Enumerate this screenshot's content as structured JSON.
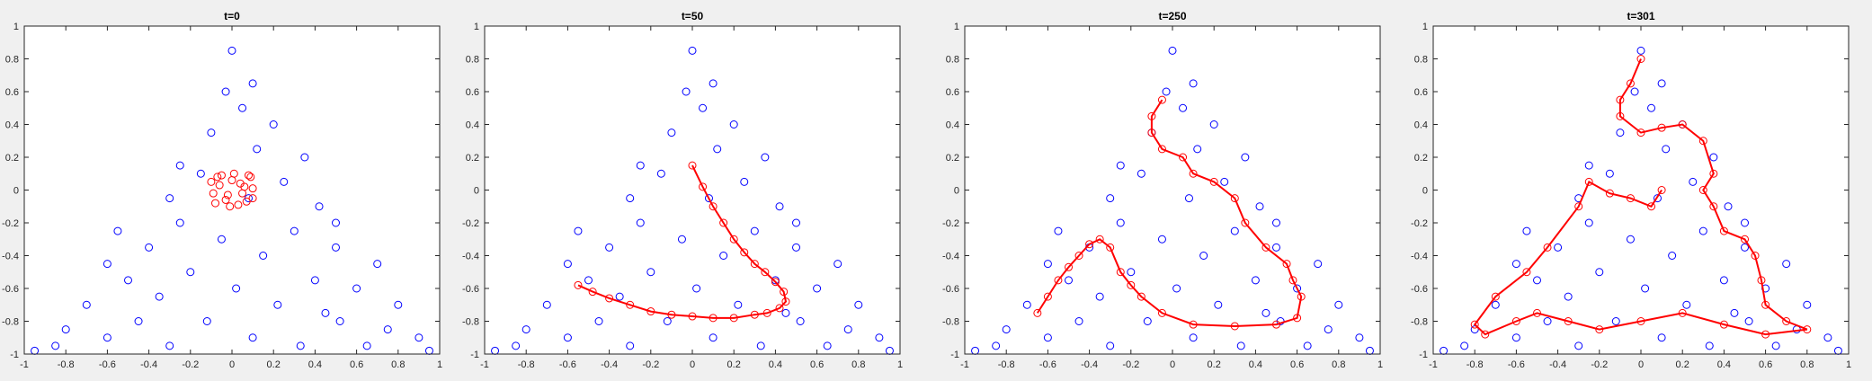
{
  "chart_data": [
    {
      "type": "scatter",
      "title": "t=0",
      "xlim": [
        -1,
        1
      ],
      "ylim": [
        -1,
        1
      ],
      "xticks": [
        -1,
        -0.8,
        -0.6,
        -0.4,
        -0.2,
        0,
        0.2,
        0.4,
        0.6,
        0.8,
        1
      ],
      "yticks": [
        -1,
        -0.8,
        -0.6,
        -0.4,
        -0.2,
        0,
        0.2,
        0.4,
        0.6,
        0.8,
        1
      ],
      "series": [
        {
          "color": "#0000ff",
          "connected": false,
          "x": [
            -0.95,
            -0.8,
            -0.7,
            -0.6,
            -0.5,
            -0.45,
            -0.4,
            -0.35,
            -0.3,
            -0.25,
            -0.2,
            -0.15,
            -0.12,
            -0.1,
            -0.05,
            -0.03,
            0,
            0.02,
            0.05,
            0.08,
            0.1,
            0.12,
            0.15,
            0.2,
            0.22,
            0.25,
            0.3,
            0.33,
            0.35,
            0.4,
            0.42,
            0.5,
            0.52,
            0.6,
            0.5,
            0.7,
            0.75,
            0.8,
            0.9,
            0.95,
            -0.6,
            -0.85,
            0.1,
            -0.25,
            0.45,
            -0.55,
            0.65,
            -0.3
          ],
          "values": [
            -0.98,
            -0.85,
            -0.7,
            -0.9,
            -0.55,
            -0.8,
            -0.35,
            -0.65,
            -0.95,
            -0.2,
            -0.5,
            0.1,
            -0.8,
            0.35,
            -0.3,
            0.6,
            0.85,
            -0.6,
            0.5,
            -0.05,
            -0.9,
            0.25,
            -0.4,
            0.4,
            -0.7,
            0.05,
            -0.25,
            -0.95,
            0.2,
            -0.55,
            -0.1,
            -0.35,
            -0.8,
            -0.6,
            -0.2,
            -0.45,
            -0.85,
            -0.7,
            -0.9,
            -0.98,
            -0.45,
            -0.95,
            0.65,
            0.15,
            -0.75,
            -0.25,
            -0.95,
            -0.05
          ]
        },
        {
          "color": "#ff0000",
          "connected": false,
          "x": [
            -0.1,
            -0.08,
            -0.05,
            -0.02,
            0,
            0.03,
            0.06,
            0.09,
            0.1,
            -0.09,
            -0.06,
            -0.03,
            0.01,
            0.04,
            0.07,
            0.1,
            -0.07,
            -0.01,
            0.05,
            0.08
          ],
          "values": [
            0.05,
            -0.08,
            0.09,
            -0.03,
            0.06,
            -0.09,
            0.02,
            0.08,
            -0.05,
            -0.02,
            0.03,
            -0.06,
            0.1,
            0.04,
            -0.07,
            0.01,
            0.08,
            -0.1,
            -0.02,
            0.09
          ]
        }
      ]
    },
    {
      "type": "scatter",
      "title": "t=50",
      "xlim": [
        -1,
        1
      ],
      "ylim": [
        -1,
        1
      ],
      "xticks": [
        -1,
        -0.8,
        -0.6,
        -0.4,
        -0.2,
        0,
        0.2,
        0.4,
        0.6,
        0.8,
        1
      ],
      "yticks": [
        -1,
        -0.8,
        -0.6,
        -0.4,
        -0.2,
        0,
        0.2,
        0.4,
        0.6,
        0.8,
        1
      ],
      "series": [
        {
          "color": "#0000ff",
          "connected": false,
          "x": [
            -0.95,
            -0.8,
            -0.7,
            -0.6,
            -0.5,
            -0.45,
            -0.4,
            -0.35,
            -0.3,
            -0.25,
            -0.2,
            -0.15,
            -0.12,
            -0.1,
            -0.05,
            -0.03,
            0,
            0.02,
            0.05,
            0.08,
            0.1,
            0.12,
            0.15,
            0.2,
            0.22,
            0.25,
            0.3,
            0.33,
            0.35,
            0.4,
            0.42,
            0.5,
            0.52,
            0.6,
            0.5,
            0.7,
            0.75,
            0.8,
            0.9,
            0.95,
            -0.6,
            -0.85,
            0.1,
            -0.25,
            0.45,
            -0.55,
            0.65,
            -0.3
          ],
          "values": [
            -0.98,
            -0.85,
            -0.7,
            -0.9,
            -0.55,
            -0.8,
            -0.35,
            -0.65,
            -0.95,
            -0.2,
            -0.5,
            0.1,
            -0.8,
            0.35,
            -0.3,
            0.6,
            0.85,
            -0.6,
            0.5,
            -0.05,
            -0.9,
            0.25,
            -0.4,
            0.4,
            -0.7,
            0.05,
            -0.25,
            -0.95,
            0.2,
            -0.55,
            -0.1,
            -0.35,
            -0.8,
            -0.6,
            -0.2,
            -0.45,
            -0.85,
            -0.7,
            -0.9,
            -0.98,
            -0.45,
            -0.95,
            0.65,
            0.15,
            -0.75,
            -0.25,
            -0.95,
            -0.05
          ]
        },
        {
          "color": "#ff0000",
          "connected": true,
          "x": [
            0,
            0.05,
            0.1,
            0.15,
            0.2,
            0.25,
            0.3,
            0.35,
            0.4,
            0.44,
            0.45,
            0.42,
            0.36,
            0.3,
            0.2,
            0.1,
            0,
            -0.1,
            -0.2,
            -0.3,
            -0.4,
            -0.48,
            -0.55
          ],
          "values": [
            0.15,
            0.02,
            -0.1,
            -0.2,
            -0.3,
            -0.38,
            -0.45,
            -0.5,
            -0.56,
            -0.62,
            -0.68,
            -0.72,
            -0.75,
            -0.76,
            -0.78,
            -0.78,
            -0.77,
            -0.76,
            -0.74,
            -0.7,
            -0.66,
            -0.62,
            -0.58
          ]
        }
      ]
    },
    {
      "type": "scatter",
      "title": "t=250",
      "xlim": [
        -1,
        1
      ],
      "ylim": [
        -1,
        1
      ],
      "xticks": [
        -1,
        -0.8,
        -0.6,
        -0.4,
        -0.2,
        0,
        0.2,
        0.4,
        0.6,
        0.8,
        1
      ],
      "yticks": [
        -1,
        -0.8,
        -0.6,
        -0.4,
        -0.2,
        0,
        0.2,
        0.4,
        0.6,
        0.8,
        1
      ],
      "series": [
        {
          "color": "#0000ff",
          "connected": false,
          "x": [
            -0.95,
            -0.8,
            -0.7,
            -0.6,
            -0.5,
            -0.45,
            -0.4,
            -0.35,
            -0.3,
            -0.25,
            -0.2,
            -0.15,
            -0.12,
            -0.1,
            -0.05,
            -0.03,
            0,
            0.02,
            0.05,
            0.08,
            0.1,
            0.12,
            0.15,
            0.2,
            0.22,
            0.25,
            0.3,
            0.33,
            0.35,
            0.4,
            0.42,
            0.5,
            0.52,
            0.6,
            0.5,
            0.7,
            0.75,
            0.8,
            0.9,
            0.95,
            -0.6,
            -0.85,
            0.1,
            -0.25,
            0.45,
            -0.55,
            0.65,
            -0.3
          ],
          "values": [
            -0.98,
            -0.85,
            -0.7,
            -0.9,
            -0.55,
            -0.8,
            -0.35,
            -0.65,
            -0.95,
            -0.2,
            -0.5,
            0.1,
            -0.8,
            0.35,
            -0.3,
            0.6,
            0.85,
            -0.6,
            0.5,
            -0.05,
            -0.9,
            0.25,
            -0.4,
            0.4,
            -0.7,
            0.05,
            -0.25,
            -0.95,
            0.2,
            -0.55,
            -0.1,
            -0.35,
            -0.8,
            -0.6,
            -0.2,
            -0.45,
            -0.85,
            -0.7,
            -0.9,
            -0.98,
            -0.45,
            -0.95,
            0.65,
            0.15,
            -0.75,
            -0.25,
            -0.95,
            -0.05
          ]
        },
        {
          "color": "#ff0000",
          "connected": true,
          "x": [
            -0.65,
            -0.6,
            -0.55,
            -0.5,
            -0.45,
            -0.4,
            -0.35,
            -0.3,
            -0.25,
            -0.2,
            -0.15,
            -0.05,
            0.1,
            0.3,
            0.5,
            0.6,
            0.62,
            0.58,
            0.55,
            0.45,
            0.35,
            0.3,
            0.2,
            0.1,
            0.05,
            -0.05,
            -0.1,
            -0.1,
            -0.05
          ],
          "values": [
            -0.75,
            -0.65,
            -0.55,
            -0.47,
            -0.4,
            -0.33,
            -0.3,
            -0.35,
            -0.5,
            -0.58,
            -0.65,
            -0.75,
            -0.82,
            -0.83,
            -0.82,
            -0.78,
            -0.65,
            -0.55,
            -0.45,
            -0.35,
            -0.2,
            -0.05,
            0.05,
            0.1,
            0.2,
            0.25,
            0.35,
            0.45,
            0.55
          ]
        }
      ]
    },
    {
      "type": "scatter",
      "title": "t=301",
      "xlim": [
        -1,
        1
      ],
      "ylim": [
        -1,
        1
      ],
      "xticks": [
        -1,
        -0.8,
        -0.6,
        -0.4,
        -0.2,
        0,
        0.2,
        0.4,
        0.6,
        0.8,
        1
      ],
      "yticks": [
        -1,
        -0.8,
        -0.6,
        -0.4,
        -0.2,
        0,
        0.2,
        0.4,
        0.6,
        0.8,
        1
      ],
      "series": [
        {
          "color": "#0000ff",
          "connected": false,
          "x": [
            -0.95,
            -0.8,
            -0.7,
            -0.6,
            -0.5,
            -0.45,
            -0.4,
            -0.35,
            -0.3,
            -0.25,
            -0.2,
            -0.15,
            -0.12,
            -0.1,
            -0.05,
            -0.03,
            0,
            0.02,
            0.05,
            0.08,
            0.1,
            0.12,
            0.15,
            0.2,
            0.22,
            0.25,
            0.3,
            0.33,
            0.35,
            0.4,
            0.42,
            0.5,
            0.52,
            0.6,
            0.5,
            0.7,
            0.75,
            0.8,
            0.9,
            0.95,
            -0.6,
            -0.85,
            0.1,
            -0.25,
            0.45,
            -0.55,
            0.65,
            -0.3
          ],
          "values": [
            -0.98,
            -0.85,
            -0.7,
            -0.9,
            -0.55,
            -0.8,
            -0.35,
            -0.65,
            -0.95,
            -0.2,
            -0.5,
            0.1,
            -0.8,
            0.35,
            -0.3,
            0.6,
            0.85,
            -0.6,
            0.5,
            -0.05,
            -0.9,
            0.25,
            -0.4,
            0.4,
            -0.7,
            0.05,
            -0.25,
            -0.95,
            0.2,
            -0.55,
            -0.1,
            -0.35,
            -0.8,
            -0.6,
            -0.2,
            -0.45,
            -0.85,
            -0.7,
            -0.9,
            -0.98,
            -0.45,
            -0.95,
            0.65,
            0.15,
            -0.75,
            -0.25,
            -0.95,
            -0.05
          ]
        },
        {
          "color": "#ff0000",
          "connected": true,
          "x": [
            0,
            -0.05,
            -0.1,
            -0.1,
            0,
            0.1,
            0.2,
            0.3,
            0.35,
            0.3,
            0.35,
            0.4,
            0.5,
            0.55,
            0.58,
            0.6,
            0.7,
            0.8,
            0.6,
            0.4,
            0.2,
            0,
            -0.2,
            -0.35,
            -0.5,
            -0.6,
            -0.75,
            -0.8,
            -0.7,
            -0.55,
            -0.45,
            -0.3,
            -0.25,
            -0.15,
            -0.05,
            0.05,
            0.1
          ],
          "values": [
            0.8,
            0.65,
            0.55,
            0.45,
            0.35,
            0.38,
            0.4,
            0.3,
            0.1,
            0,
            -0.1,
            -0.25,
            -0.3,
            -0.4,
            -0.55,
            -0.7,
            -0.8,
            -0.85,
            -0.88,
            -0.82,
            -0.75,
            -0.8,
            -0.85,
            -0.8,
            -0.75,
            -0.8,
            -0.88,
            -0.82,
            -0.65,
            -0.5,
            -0.35,
            -0.1,
            0.05,
            -0.02,
            -0.05,
            -0.1,
            0
          ]
        }
      ]
    }
  ]
}
